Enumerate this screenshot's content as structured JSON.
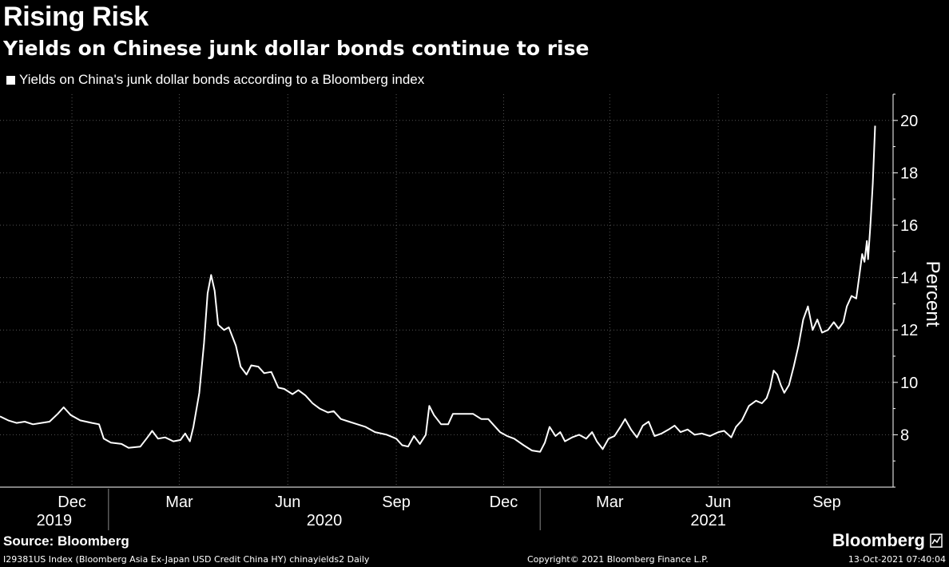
{
  "header": {
    "title": "Rising Risk",
    "subtitle": "Yields on Chinese junk dollar bonds continue to rise",
    "legend_label": "Yields on China's junk dollar bonds according to a Bloomberg index"
  },
  "footer": {
    "source": "Source: Bloomberg",
    "brand": "Bloomberg",
    "meta": "I29381US Index (Bloomberg Asia Ex-Japan USD Credit China HY) chinayields2  Daily",
    "copyright": "Copyright© 2021 Bloomberg Finance L.P.",
    "timestamp": "13-Oct-2021 07:40:04"
  },
  "colors": {
    "background": "#000000",
    "line": "#ffffff",
    "grid": "#555555"
  },
  "chart_data": {
    "type": "line",
    "ylabel": "Percent",
    "ylim": [
      6.0,
      21.0
    ],
    "yticks": [
      8,
      10,
      12,
      14,
      16,
      18,
      20
    ],
    "x_range": [
      "2019-10-01",
      "2021-10-13"
    ],
    "month_ticks": [
      {
        "label": "Dec",
        "date": "2019-12-01"
      },
      {
        "label": "Mar",
        "date": "2020-03-01"
      },
      {
        "label": "Jun",
        "date": "2020-06-01"
      },
      {
        "label": "Sep",
        "date": "2020-09-01"
      },
      {
        "label": "Dec",
        "date": "2020-12-01"
      },
      {
        "label": "Mar",
        "date": "2021-03-01"
      },
      {
        "label": "Jun",
        "date": "2021-06-01"
      },
      {
        "label": "Sep",
        "date": "2021-09-01"
      }
    ],
    "year_labels": [
      {
        "label": "2019",
        "start": "2019-10-01",
        "end": "2020-01-01"
      },
      {
        "label": "2020",
        "start": "2020-01-01",
        "end": "2021-01-01"
      },
      {
        "label": "2021",
        "start": "2021-01-01",
        "end": "2021-10-13"
      }
    ],
    "year_dividers": [
      "2020-01-01",
      "2021-01-01"
    ],
    "series": [
      {
        "points": [
          [
            "2019-10-01",
            8.7
          ],
          [
            "2019-10-08",
            8.55
          ],
          [
            "2019-10-15",
            8.45
          ],
          [
            "2019-10-22",
            8.5
          ],
          [
            "2019-10-29",
            8.4
          ],
          [
            "2019-11-05",
            8.45
          ],
          [
            "2019-11-12",
            8.5
          ],
          [
            "2019-11-19",
            8.8
          ],
          [
            "2019-11-24",
            9.05
          ],
          [
            "2019-11-30",
            8.75
          ],
          [
            "2019-12-08",
            8.55
          ],
          [
            "2019-12-18",
            8.45
          ],
          [
            "2019-12-24",
            8.4
          ],
          [
            "2019-12-28",
            7.85
          ],
          [
            "2020-01-03",
            7.7
          ],
          [
            "2020-01-12",
            7.65
          ],
          [
            "2020-01-18",
            7.5
          ],
          [
            "2020-01-28",
            7.55
          ],
          [
            "2020-02-03",
            7.9
          ],
          [
            "2020-02-07",
            8.15
          ],
          [
            "2020-02-12",
            7.85
          ],
          [
            "2020-02-18",
            7.9
          ],
          [
            "2020-02-25",
            7.75
          ],
          [
            "2020-03-02",
            7.8
          ],
          [
            "2020-03-06",
            8.05
          ],
          [
            "2020-03-10",
            7.75
          ],
          [
            "2020-03-13",
            8.3
          ],
          [
            "2020-03-18",
            9.6
          ],
          [
            "2020-03-22",
            11.5
          ],
          [
            "2020-03-25",
            13.4
          ],
          [
            "2020-03-28",
            14.1
          ],
          [
            "2020-03-31",
            13.5
          ],
          [
            "2020-04-03",
            12.2
          ],
          [
            "2020-04-08",
            12.0
          ],
          [
            "2020-04-12",
            12.1
          ],
          [
            "2020-04-18",
            11.4
          ],
          [
            "2020-04-22",
            10.6
          ],
          [
            "2020-04-27",
            10.3
          ],
          [
            "2020-05-01",
            10.65
          ],
          [
            "2020-05-07",
            10.6
          ],
          [
            "2020-05-12",
            10.35
          ],
          [
            "2020-05-18",
            10.4
          ],
          [
            "2020-05-24",
            9.8
          ],
          [
            "2020-05-29",
            9.75
          ],
          [
            "2020-06-05",
            9.55
          ],
          [
            "2020-06-10",
            9.7
          ],
          [
            "2020-06-16",
            9.5
          ],
          [
            "2020-06-22",
            9.2
          ],
          [
            "2020-06-28",
            9.0
          ],
          [
            "2020-07-05",
            8.85
          ],
          [
            "2020-07-10",
            8.9
          ],
          [
            "2020-07-16",
            8.6
          ],
          [
            "2020-07-23",
            8.5
          ],
          [
            "2020-07-30",
            8.4
          ],
          [
            "2020-08-06",
            8.3
          ],
          [
            "2020-08-14",
            8.1
          ],
          [
            "2020-08-24",
            8.0
          ],
          [
            "2020-09-01",
            7.85
          ],
          [
            "2020-09-06",
            7.6
          ],
          [
            "2020-09-11",
            7.55
          ],
          [
            "2020-09-16",
            7.95
          ],
          [
            "2020-09-21",
            7.65
          ],
          [
            "2020-09-26",
            8.0
          ],
          [
            "2020-09-29",
            9.1
          ],
          [
            "2020-10-03",
            8.75
          ],
          [
            "2020-10-09",
            8.4
          ],
          [
            "2020-10-15",
            8.4
          ],
          [
            "2020-10-19",
            8.8
          ],
          [
            "2020-10-28",
            8.8
          ],
          [
            "2020-11-05",
            8.8
          ],
          [
            "2020-11-12",
            8.6
          ],
          [
            "2020-11-18",
            8.6
          ],
          [
            "2020-11-23",
            8.35
          ],
          [
            "2020-11-28",
            8.1
          ],
          [
            "2020-12-04",
            7.95
          ],
          [
            "2020-12-10",
            7.85
          ],
          [
            "2020-12-18",
            7.6
          ],
          [
            "2020-12-25",
            7.4
          ],
          [
            "2021-01-01",
            7.35
          ],
          [
            "2021-01-05",
            7.7
          ],
          [
            "2021-01-09",
            8.3
          ],
          [
            "2021-01-14",
            7.95
          ],
          [
            "2021-01-18",
            8.1
          ],
          [
            "2021-01-22",
            7.75
          ],
          [
            "2021-01-28",
            7.9
          ],
          [
            "2021-02-03",
            8.0
          ],
          [
            "2021-02-09",
            7.85
          ],
          [
            "2021-02-14",
            8.1
          ],
          [
            "2021-02-18",
            7.75
          ],
          [
            "2021-02-23",
            7.45
          ],
          [
            "2021-02-28",
            7.85
          ],
          [
            "2021-03-05",
            7.95
          ],
          [
            "2021-03-10",
            8.3
          ],
          [
            "2021-03-14",
            8.6
          ],
          [
            "2021-03-19",
            8.2
          ],
          [
            "2021-03-24",
            7.9
          ],
          [
            "2021-03-29",
            8.35
          ],
          [
            "2021-04-03",
            8.5
          ],
          [
            "2021-04-08",
            7.95
          ],
          [
            "2021-04-14",
            8.05
          ],
          [
            "2021-04-20",
            8.2
          ],
          [
            "2021-04-25",
            8.35
          ],
          [
            "2021-04-30",
            8.1
          ],
          [
            "2021-05-06",
            8.2
          ],
          [
            "2021-05-12",
            8.0
          ],
          [
            "2021-05-18",
            8.05
          ],
          [
            "2021-05-25",
            7.95
          ],
          [
            "2021-06-01",
            8.1
          ],
          [
            "2021-06-06",
            8.15
          ],
          [
            "2021-06-12",
            7.9
          ],
          [
            "2021-06-16",
            8.3
          ],
          [
            "2021-06-21",
            8.55
          ],
          [
            "2021-06-27",
            9.1
          ],
          [
            "2021-07-03",
            9.3
          ],
          [
            "2021-07-08",
            9.2
          ],
          [
            "2021-07-12",
            9.4
          ],
          [
            "2021-07-15",
            9.8
          ],
          [
            "2021-07-18",
            10.45
          ],
          [
            "2021-07-21",
            10.3
          ],
          [
            "2021-07-24",
            9.9
          ],
          [
            "2021-07-27",
            9.6
          ],
          [
            "2021-07-31",
            9.9
          ],
          [
            "2021-08-04",
            10.6
          ],
          [
            "2021-08-08",
            11.4
          ],
          [
            "2021-08-12",
            12.4
          ],
          [
            "2021-08-16",
            12.9
          ],
          [
            "2021-08-20",
            12.0
          ],
          [
            "2021-08-24",
            12.4
          ],
          [
            "2021-08-28",
            11.9
          ],
          [
            "2021-09-02",
            12.0
          ],
          [
            "2021-09-07",
            12.3
          ],
          [
            "2021-09-11",
            12.05
          ],
          [
            "2021-09-15",
            12.3
          ],
          [
            "2021-09-18",
            12.9
          ],
          [
            "2021-09-22",
            13.3
          ],
          [
            "2021-09-26",
            13.2
          ],
          [
            "2021-09-29",
            14.2
          ],
          [
            "2021-10-01",
            14.9
          ],
          [
            "2021-10-03",
            14.6
          ],
          [
            "2021-10-05",
            15.4
          ],
          [
            "2021-10-06",
            14.7
          ],
          [
            "2021-10-08",
            16.0
          ],
          [
            "2021-10-10",
            17.6
          ],
          [
            "2021-10-12",
            19.8
          ]
        ]
      }
    ]
  }
}
